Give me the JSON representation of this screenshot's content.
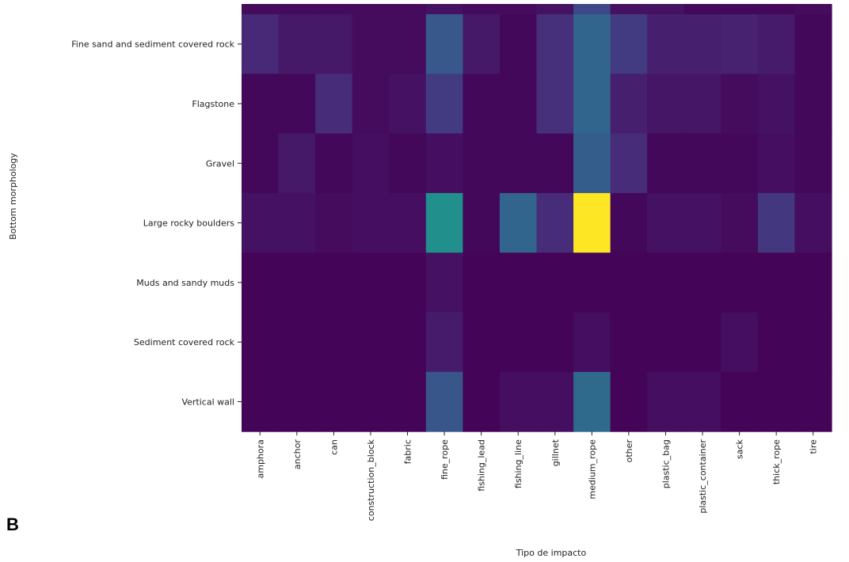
{
  "panel_label": "B",
  "chart_data": {
    "type": "heatmap",
    "xlabel": "Tipo de impacto",
    "ylabel": "Bottom morphology",
    "x_categories": [
      "amphora",
      "anchor",
      "can",
      "construction_block",
      "fabric",
      "fine_rope",
      "fishing_lead",
      "fishing_line",
      "gillnet",
      "medium_rope",
      "other",
      "plastic_bag",
      "plastic_container",
      "sack",
      "thick_rope",
      "tire"
    ],
    "y_categories": [
      "Fine sand and sediment covered rock",
      "Flagstone",
      "Gravel",
      "Large rocky boulders",
      "Muds and sandy muds",
      "Sediment covered rock",
      "Vertical wall"
    ],
    "colormap": "viridis",
    "top_partial_row": [
      0.03,
      0.03,
      0.03,
      0.03,
      0.03,
      0.05,
      0.03,
      0.03,
      0.05,
      0.22,
      0.05,
      0.05,
      0.02,
      0.02,
      0.02,
      0.03
    ],
    "values": [
      [
        0.12,
        0.07,
        0.07,
        0.03,
        0.03,
        0.28,
        0.07,
        0.02,
        0.14,
        0.33,
        0.18,
        0.09,
        0.09,
        0.1,
        0.08,
        0.02
      ],
      [
        0.02,
        0.02,
        0.13,
        0.03,
        0.05,
        0.18,
        0.02,
        0.02,
        0.14,
        0.33,
        0.09,
        0.06,
        0.06,
        0.03,
        0.05,
        0.02
      ],
      [
        0.02,
        0.07,
        0.02,
        0.04,
        0.02,
        0.04,
        0.02,
        0.02,
        0.02,
        0.3,
        0.13,
        0.02,
        0.02,
        0.02,
        0.04,
        0.02
      ],
      [
        0.05,
        0.05,
        0.03,
        0.04,
        0.04,
        0.5,
        0.02,
        0.33,
        0.13,
        1.0,
        0.02,
        0.05,
        0.05,
        0.03,
        0.17,
        0.04
      ],
      [
        0.01,
        0.01,
        0.01,
        0.01,
        0.01,
        0.05,
        0.01,
        0.01,
        0.01,
        0.01,
        0.01,
        0.01,
        0.01,
        0.01,
        0.01,
        0.01
      ],
      [
        0.01,
        0.01,
        0.01,
        0.01,
        0.01,
        0.08,
        0.01,
        0.01,
        0.01,
        0.04,
        0.01,
        0.01,
        0.01,
        0.04,
        0.01,
        0.01
      ],
      [
        0.01,
        0.01,
        0.01,
        0.01,
        0.01,
        0.27,
        0.01,
        0.04,
        0.04,
        0.35,
        0.01,
        0.04,
        0.04,
        0.01,
        0.01,
        0.01
      ]
    ]
  }
}
